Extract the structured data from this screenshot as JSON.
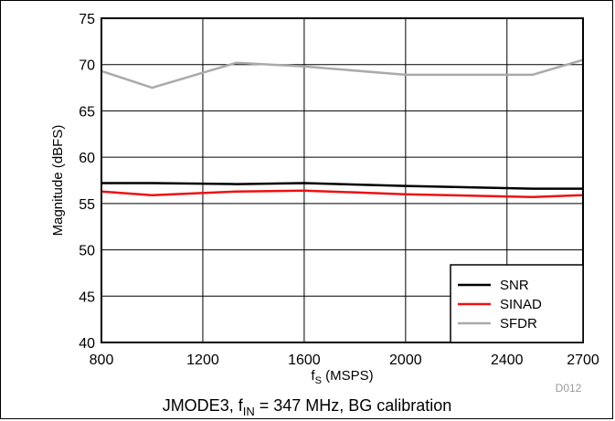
{
  "chart_data": {
    "type": "line",
    "xlabel_main": "f",
    "xlabel_sub": "S",
    "xlabel_rest": " (MSPS)",
    "ylabel": "Magnitude (dBFS)",
    "xlim": [
      800,
      2700
    ],
    "ylim": [
      40,
      75
    ],
    "xticks": [
      800,
      1200,
      1600,
      2000,
      2400,
      2700
    ],
    "yticks": [
      40,
      45,
      50,
      55,
      60,
      65,
      70,
      75
    ],
    "grid": true,
    "legend_position": "bottom-right",
    "series": [
      {
        "name": "SNR",
        "color": "#000000",
        "x": [
          800,
          1000,
          1333,
          1600,
          2000,
          2500,
          2700
        ],
        "y": [
          57.2,
          57.2,
          57.1,
          57.2,
          56.9,
          56.6,
          56.6
        ]
      },
      {
        "name": "SINAD",
        "color": "#ee1111",
        "x": [
          800,
          1000,
          1333,
          1600,
          2000,
          2500,
          2700
        ],
        "y": [
          56.3,
          55.9,
          56.3,
          56.4,
          56.0,
          55.7,
          55.9
        ]
      },
      {
        "name": "SFDR",
        "color": "#aaaaaa",
        "x": [
          800,
          1000,
          1333,
          1600,
          2000,
          2500,
          2700
        ],
        "y": [
          69.3,
          67.5,
          70.2,
          69.8,
          68.9,
          68.9,
          70.5
        ]
      }
    ],
    "figure_code": "D012",
    "caption_main": "JMODE3, f",
    "caption_sub": "IN",
    "caption_rest": " = 347 MHz, BG calibration"
  }
}
